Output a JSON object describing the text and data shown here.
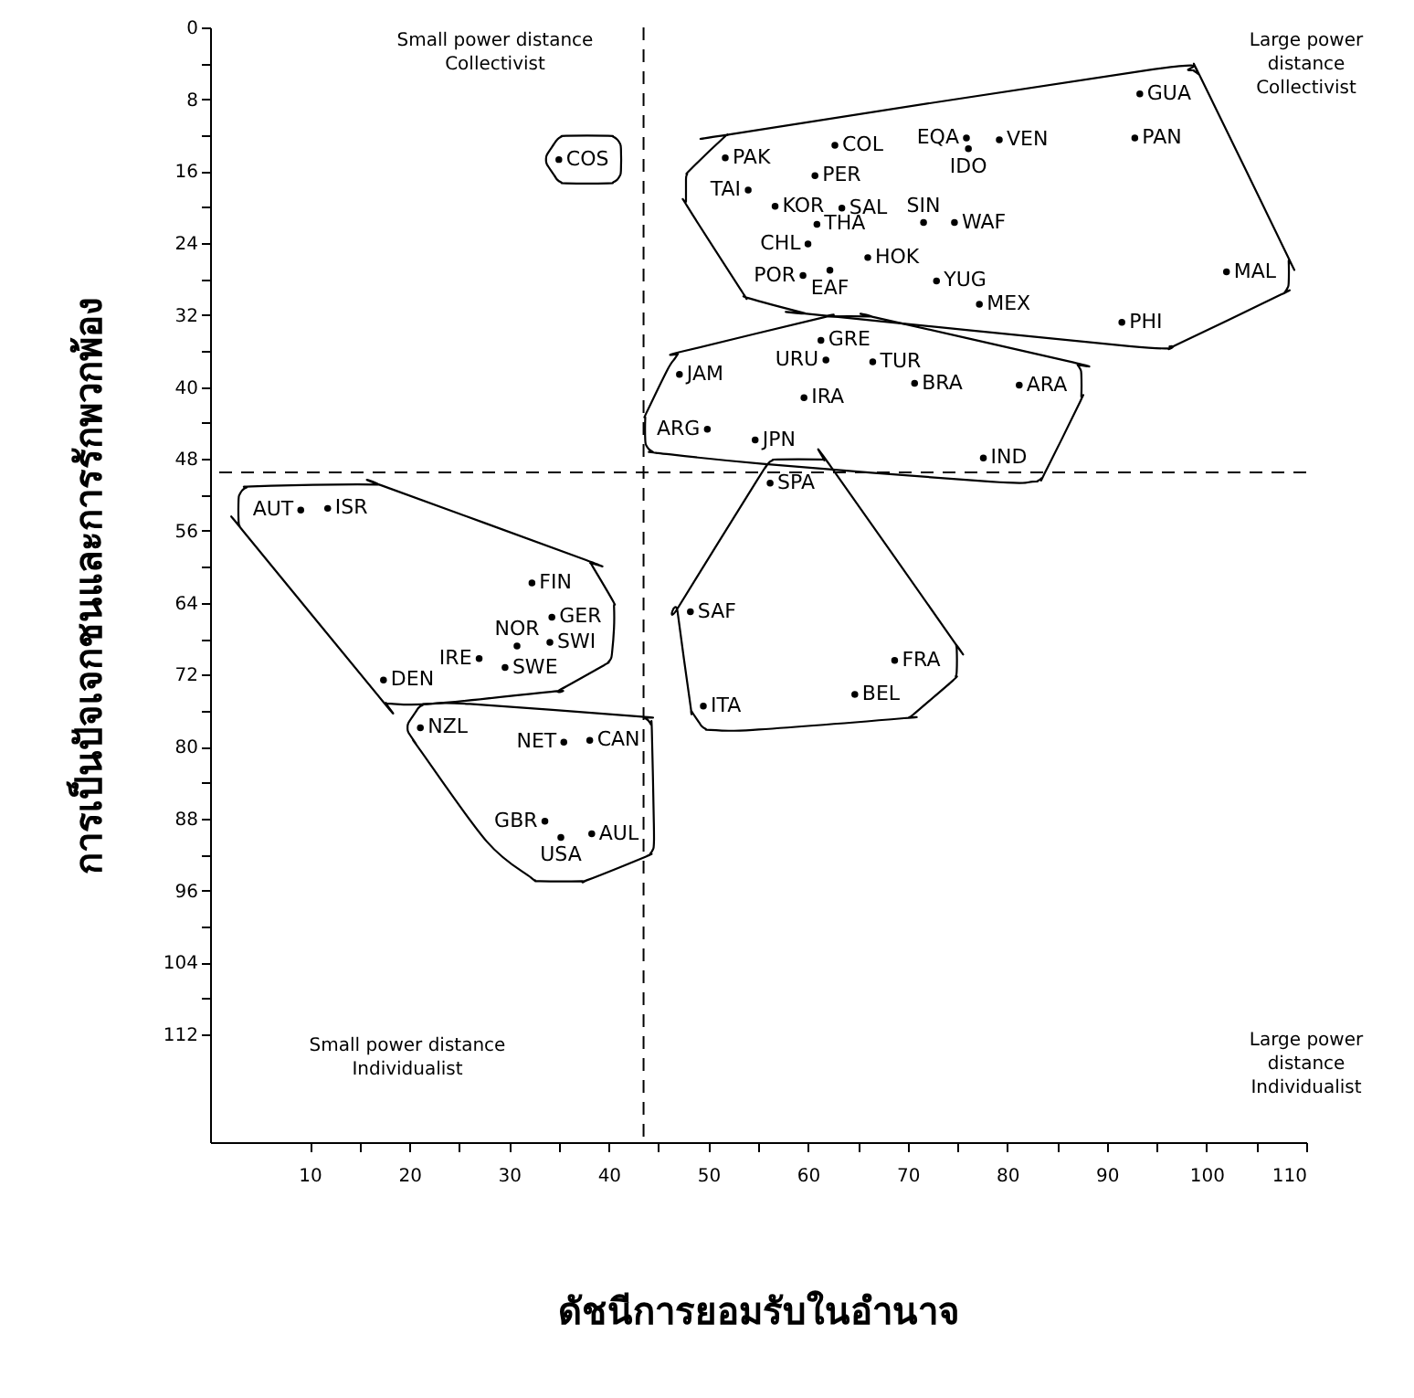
{
  "chart_data": {
    "type": "scatter",
    "xlabel": "ดัชนีการยอมรับในอำนาจ",
    "ylabel": "การเป็นปัจเจกชนและการรักพวกพ้อง",
    "xlim": [
      0,
      110
    ],
    "ylim": [
      124,
      0
    ],
    "xticks": [
      10,
      {
        "value": 15,
        "label": null
      },
      20,
      {
        "value": 25,
        "label": null
      },
      30,
      {
        "value": 35,
        "label": null
      },
      40,
      {
        "value": 45,
        "label": null
      },
      50,
      {
        "value": 55,
        "label": null
      },
      60,
      {
        "value": 65,
        "label": null
      },
      70,
      {
        "value": 75,
        "label": null
      },
      80,
      {
        "value": 85,
        "label": null
      },
      90,
      {
        "value": 95,
        "label": null
      },
      100,
      {
        "value": 105,
        "label": null
      },
      110
    ],
    "yticks": [
      0,
      {
        "value": 4,
        "label": null
      },
      8,
      {
        "value": 12,
        "label": null
      },
      16,
      {
        "value": 20,
        "label": null
      },
      24,
      {
        "value": 28,
        "label": null
      },
      32,
      {
        "value": 36,
        "label": null
      },
      40,
      {
        "value": 44,
        "label": null
      },
      48,
      {
        "value": 52,
        "label": null
      },
      56,
      {
        "value": 60,
        "label": null
      },
      64,
      {
        "value": 68,
        "label": null
      },
      72,
      {
        "value": 76,
        "label": null
      },
      80,
      {
        "value": 84,
        "label": null
      },
      88,
      {
        "value": 92,
        "label": null
      },
      96,
      {
        "value": 100,
        "label": null
      },
      104,
      {
        "value": 108,
        "label": null
      },
      112
    ],
    "marker": "circle",
    "ref_lines": [
      {
        "axis": "x",
        "value": 43.5,
        "line_style": "dashed",
        "color": "#000000"
      },
      {
        "axis": "y",
        "value": 49.5,
        "line_style": "dashed",
        "color": "#000000"
      }
    ],
    "annotations": [
      "Small power distance\nCollectivist",
      "Large power\ndistance\nCollectivist",
      "Small power distance\nIndividualist",
      "Large power\ndistance\nIndividualist"
    ],
    "series": [
      {
        "color": "#000000",
        "x": [
          35
        ],
        "values": [
          14.7
        ],
        "value_labels": [
          "COS"
        ]
      },
      {
        "color": "#000000",
        "x": [
          75.9,
          93.3,
          62.7,
          79.2,
          92.8,
          76.1,
          51.7,
          60.7,
          54.0,
          56.7,
          63.4,
          71.6,
          74.7,
          60.9,
          60.0,
          66.0,
          102.0,
          59.5,
          62.2,
          72.9,
          77.2,
          91.5
        ],
        "values": [
          12.3,
          7.4,
          13.1,
          12.5,
          12.3,
          13.5,
          14.5,
          16.5,
          18.1,
          19.9,
          20.1,
          21.7,
          21.7,
          21.9,
          24.1,
          25.6,
          27.2,
          27.6,
          27.0,
          28.2,
          30.8,
          32.8
        ],
        "value_labels": [
          "EQA",
          "GUA",
          "COL",
          "VEN",
          "PAN",
          "IDO",
          "PAK",
          "PER",
          "TAI",
          "KOR",
          "SAL",
          "SIN",
          "WAF",
          "THA",
          "CHL",
          "HOK",
          "MAL",
          "POR",
          "EAF",
          "YUG",
          "MEX",
          "PHI"
        ]
      },
      {
        "color": "#000000",
        "x": [
          61.3,
          61.8,
          66.5,
          47.1,
          70.7,
          81.2,
          59.6,
          49.9,
          54.7,
          77.6
        ],
        "values": [
          34.8,
          37.0,
          37.2,
          38.6,
          39.6,
          39.8,
          41.2,
          44.7,
          45.9,
          47.9
        ],
        "value_labels": [
          "GRE",
          "URU",
          "TUR",
          "JAM",
          "BRA",
          "ARA",
          "IRA",
          "ARG",
          "JPN",
          "IND"
        ]
      },
      {
        "color": "#000000",
        "x": [
          9.1,
          11.8,
          32.3,
          34.3,
          30.8,
          34.1,
          27.0,
          29.6,
          17.4
        ],
        "values": [
          53.7,
          53.5,
          61.8,
          65.6,
          68.8,
          68.4,
          70.2,
          71.2,
          72.6
        ],
        "value_labels": [
          "AUT",
          "ISR",
          "FIN",
          "GER",
          "NOR",
          "SWI",
          "IRE",
          "SWE",
          "DEN"
        ]
      },
      {
        "color": "#000000",
        "x": [
          21.1,
          35.5,
          38.1,
          33.6,
          38.3,
          35.2
        ],
        "values": [
          77.9,
          79.5,
          79.3,
          88.3,
          89.7,
          90.1
        ],
        "value_labels": [
          "NZL",
          "NET",
          "CAN",
          "GBR",
          "AUL",
          "USA"
        ]
      },
      {
        "color": "#000000",
        "x": [
          56.2,
          48.2,
          68.7,
          64.7,
          49.5
        ],
        "values": [
          50.7,
          65.0,
          70.4,
          74.2,
          75.5
        ],
        "value_labels": [
          "SPA",
          "SAF",
          "FRA",
          "BEL",
          "ITA"
        ]
      }
    ]
  }
}
